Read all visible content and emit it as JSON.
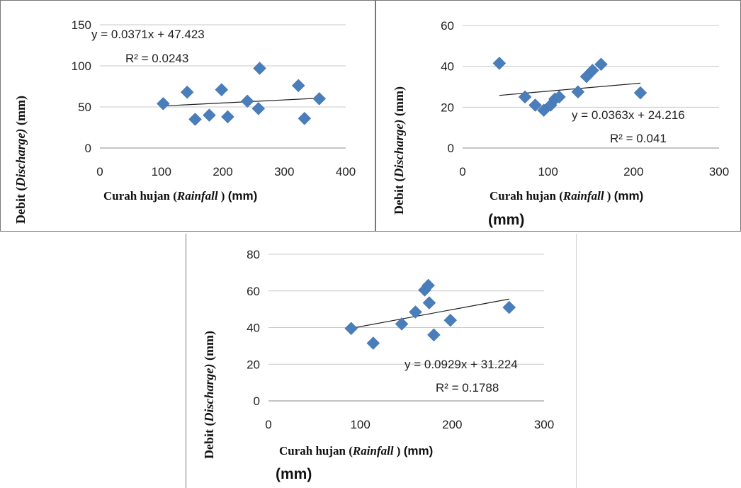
{
  "charts_common": {
    "marker_color": "#4a7ebb",
    "line_color": "#1f1f1f",
    "grid_color": "#c8c8c8",
    "border_color": "#777777"
  },
  "labels": {
    "ylabel_pre": "Debit (",
    "ylabel_em": "Discharge)",
    "ylabel_post": " (mm)",
    "xlabel_pre": "Curah hujan (",
    "xlabel_em": "Rainfall",
    "xlabel_post": " )  ",
    "xlabel_unit": "(mm)",
    "extra_mm": "(mm)"
  },
  "chart_data": [
    {
      "type": "scatter",
      "title": "",
      "xlabel": "Curah hujan (Rainfall )  (mm)",
      "ylabel": "Debit (Discharge) (mm)",
      "xlim": [
        0,
        400
      ],
      "ylim": [
        0,
        150
      ],
      "xticks": [
        0,
        100,
        200,
        300,
        400
      ],
      "yticks": [
        0,
        50,
        100,
        150
      ],
      "grid": true,
      "legend": "none",
      "points": [
        [
          103,
          54
        ],
        [
          142,
          68
        ],
        [
          155,
          35
        ],
        [
          178,
          40
        ],
        [
          198,
          71
        ],
        [
          208,
          38
        ],
        [
          240,
          57
        ],
        [
          258,
          48
        ],
        [
          260,
          97
        ],
        [
          323,
          76
        ],
        [
          333,
          36
        ],
        [
          357,
          60
        ]
      ],
      "trendline": {
        "slope": 0.0371,
        "intercept": 47.423,
        "x_range": [
          103,
          357
        ]
      },
      "equation": "y = 0.0371x + 47.423",
      "r2": "R² = 0.0243"
    },
    {
      "type": "scatter",
      "title": "",
      "xlabel": "Curah hujan (Rainfall )  (mm)",
      "ylabel": "Debit (Discharge) (mm)",
      "xlim": [
        0,
        300
      ],
      "ylim": [
        0,
        60
      ],
      "xticks": [
        0,
        100,
        200,
        300
      ],
      "yticks": [
        0,
        20,
        40,
        60
      ],
      "grid": true,
      "legend": "none",
      "points": [
        [
          43,
          41.5
        ],
        [
          73,
          25
        ],
        [
          85,
          21
        ],
        [
          95,
          18.5
        ],
        [
          103,
          21
        ],
        [
          108,
          24
        ],
        [
          113,
          25
        ],
        [
          135,
          27.5
        ],
        [
          145,
          35
        ],
        [
          152,
          38
        ],
        [
          162,
          41
        ],
        [
          208,
          27
        ]
      ],
      "trendline": {
        "slope": 0.0363,
        "intercept": 24.216,
        "x_range": [
          43,
          208
        ]
      },
      "equation": "y = 0.0363x + 24.216",
      "r2": "R² = 0.041"
    },
    {
      "type": "scatter",
      "title": "",
      "xlabel": "Curah hujan (Rainfall )  (mm)",
      "ylabel": "Debit (Discharge) (mm)",
      "xlim": [
        0,
        300
      ],
      "ylim": [
        0,
        80
      ],
      "xticks": [
        0,
        100,
        200,
        300
      ],
      "yticks": [
        0,
        20,
        40,
        60,
        80
      ],
      "grid": true,
      "legend": "none",
      "points": [
        [
          90,
          39.5
        ],
        [
          114,
          31.5
        ],
        [
          145,
          42
        ],
        [
          160,
          48.5
        ],
        [
          170,
          60.5
        ],
        [
          174,
          63
        ],
        [
          175,
          53.5
        ],
        [
          180,
          36
        ],
        [
          198,
          44
        ],
        [
          262,
          51
        ]
      ],
      "trendline": {
        "slope": 0.0929,
        "intercept": 31.224,
        "x_range": [
          90,
          262
        ]
      },
      "equation": "y = 0.0929x + 31.224",
      "r2": "R² = 0.1788"
    }
  ]
}
